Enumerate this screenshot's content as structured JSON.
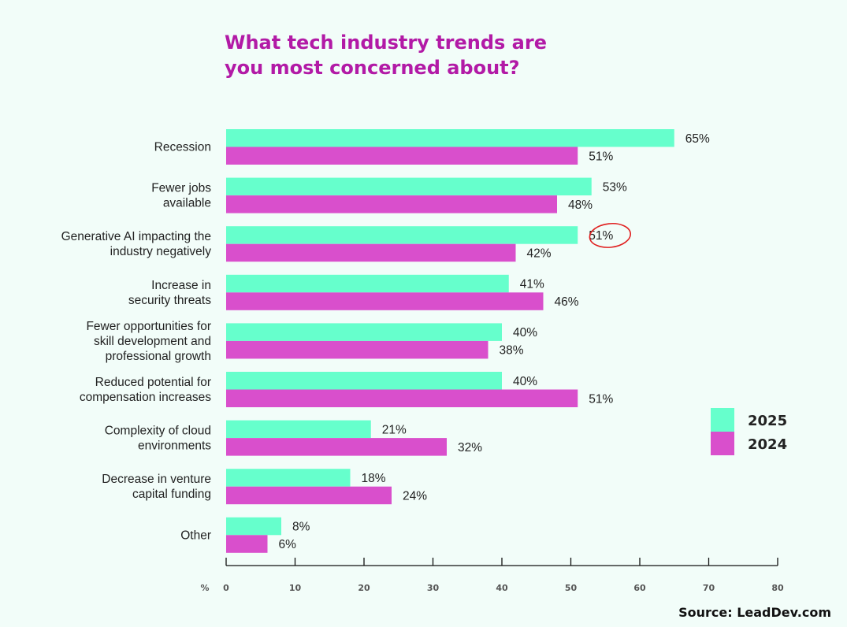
{
  "chart_data": {
    "type": "bar",
    "orientation": "horizontal",
    "title": "What tech industry trends are you most concerned about?",
    "title_lines": [
      "What tech industry trends are",
      "you most concerned about?"
    ],
    "categories": [
      [
        "Recession"
      ],
      [
        "Fewer jobs",
        "available"
      ],
      [
        "Generative AI impacting the",
        "industry negatively"
      ],
      [
        "Increase in",
        "security threats"
      ],
      [
        "Fewer opportunities for",
        "skill development and",
        "professional growth"
      ],
      [
        "Reduced potential for",
        "compensation increases"
      ],
      [
        "Complexity of cloud",
        "environments"
      ],
      [
        "Decrease in venture",
        "capital funding"
      ],
      [
        "Other"
      ]
    ],
    "series": [
      {
        "name": "2025",
        "color": "#66ffcc",
        "values": [
          65,
          53,
          51,
          41,
          40,
          40,
          21,
          18,
          8
        ]
      },
      {
        "name": "2024",
        "color": "#d94fcc",
        "values": [
          51,
          48,
          42,
          46,
          38,
          51,
          32,
          24,
          6
        ]
      }
    ],
    "value_suffix": "%",
    "xlabel": "%",
    "xlim": [
      0,
      80
    ],
    "xticks": [
      0,
      10,
      20,
      30,
      40,
      50,
      60,
      70,
      80
    ],
    "grid": false,
    "legend_position": "right",
    "highlight": {
      "category_index": 2,
      "series_index": 0,
      "style": "red-circle"
    },
    "title_color": "#b21aa6",
    "source": "Source: LeadDev.com"
  }
}
